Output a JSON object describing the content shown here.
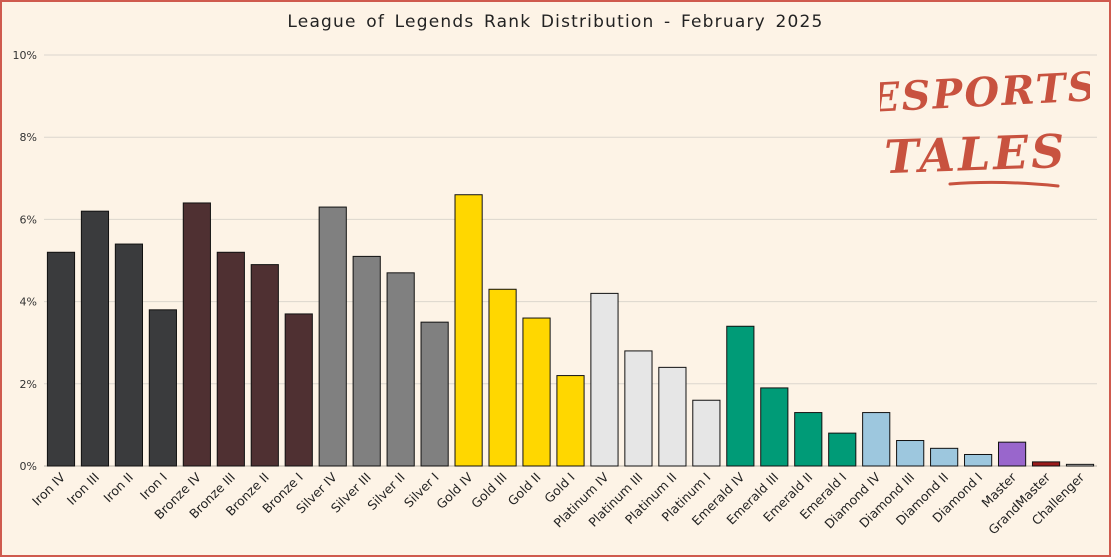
{
  "chart_data": {
    "type": "bar",
    "title": "League of Legends Rank Distribution  - February 2025",
    "xlabel": "",
    "ylabel": "",
    "ylim": [
      0,
      10
    ],
    "yticks": [
      "0%",
      "2%",
      "4%",
      "6%",
      "8%",
      "10%"
    ],
    "ytick_values": [
      0,
      2,
      4,
      6,
      8,
      10
    ],
    "grid": true,
    "categories": [
      "Iron IV",
      "Iron III",
      "Iron II",
      "Iron I",
      "Bronze IV",
      "Bronze III",
      "Bronze II",
      "Bronze I",
      "Silver IV",
      "Silver III",
      "Silver II",
      "Silver I",
      "Gold IV",
      "Gold III",
      "Gold II",
      "Gold I",
      "Platinum IV",
      "Platinum III",
      "Platinum II",
      "Platinum I",
      "Emerald IV",
      "Emerald III",
      "Emerald II",
      "Emerald I",
      "Diamond IV",
      "Diamond III",
      "Diamond II",
      "Diamond I",
      "Master",
      "GrandMaster",
      "Challenger"
    ],
    "values": [
      5.2,
      6.2,
      5.4,
      3.8,
      6.4,
      5.2,
      4.9,
      3.7,
      6.3,
      5.1,
      4.7,
      3.5,
      6.6,
      4.3,
      3.6,
      2.2,
      4.2,
      2.8,
      2.4,
      1.6,
      3.4,
      1.9,
      1.3,
      0.8,
      1.3,
      0.62,
      0.43,
      0.28,
      0.58,
      0.1,
      0.04
    ],
    "colors": [
      "#3a3b3d",
      "#3a3b3d",
      "#3a3b3d",
      "#3a3b3d",
      "#4f3032",
      "#4f3032",
      "#4f3032",
      "#4f3032",
      "#808080",
      "#808080",
      "#808080",
      "#808080",
      "#ffd700",
      "#ffd700",
      "#ffd700",
      "#ffd700",
      "#e6e6e6",
      "#e6e6e6",
      "#e6e6e6",
      "#e6e6e6",
      "#009b77",
      "#009b77",
      "#009b77",
      "#009b77",
      "#9dc7de",
      "#9dc7de",
      "#9dc7de",
      "#9dc7de",
      "#9966cc",
      "#9b1b1b",
      "#d7d7d7"
    ]
  },
  "logo": {
    "line1": "ESPORTS",
    "line2": "TALES",
    "color": "#c8523f"
  },
  "theme": {
    "background": "#fdf3e6",
    "border": "#cf5a4e",
    "grid": "#dcd6cd"
  }
}
